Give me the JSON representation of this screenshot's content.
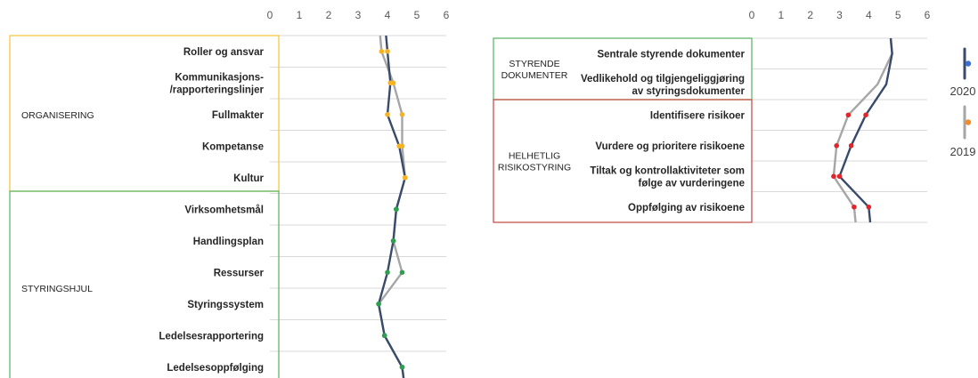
{
  "colors": {
    "series_2020": "#3a4a6b",
    "series_2019": "#a6a6a6",
    "marker_org": "#f5b324",
    "marker_styring": "#2e9e4f",
    "marker_risk": "#e0262a",
    "border_org": "#f5c842",
    "border_green": "#62b86a",
    "border_red": "#c9534a",
    "legend_2020": "#3d6fd1",
    "legend_2019": "#f08a2a",
    "grid": "#d9d9d9"
  },
  "chart_data": [
    {
      "type": "line",
      "orientation": "vertical-profile",
      "xlim": [
        0,
        6
      ],
      "xticks": [
        "0",
        "1",
        "2",
        "3",
        "4",
        "5",
        "6"
      ],
      "groups": [
        {
          "label": "ORGANISERING",
          "rows": 5
        },
        {
          "label": "STYRINGSHJUL",
          "rows": 6
        }
      ],
      "categories": [
        [
          "Roller og ansvar"
        ],
        [
          "Kommunikasjons-",
          "/rapporteringslinjer"
        ],
        [
          "Fullmakter"
        ],
        [
          "Kompetanse"
        ],
        [
          "Kultur"
        ],
        [
          "Virksomhetsmål"
        ],
        [
          "Handlingsplan"
        ],
        [
          "Ressurser"
        ],
        [
          "Styringssystem"
        ],
        [
          "Ledelsesrapportering"
        ],
        [
          "Ledelsesoppfølging"
        ]
      ],
      "series": [
        {
          "name": "2020",
          "values": [
            4.0,
            4.1,
            4.0,
            4.4,
            4.6,
            4.3,
            4.2,
            4.0,
            3.7,
            3.9,
            4.5
          ]
        },
        {
          "name": "2019",
          "values": [
            3.8,
            4.2,
            4.5,
            4.5,
            4.6,
            4.3,
            4.2,
            4.5,
            3.7,
            3.9,
            4.5
          ]
        }
      ]
    },
    {
      "type": "line",
      "orientation": "vertical-profile",
      "xlim": [
        0,
        6
      ],
      "xticks": [
        "0",
        "1",
        "2",
        "3",
        "4",
        "5",
        "6"
      ],
      "groups": [
        {
          "label": [
            "STYRENDE",
            "DOKUMENTER"
          ],
          "rows": 2
        },
        {
          "label": [
            "HELHETLIG",
            "RISIKOSTYRING"
          ],
          "rows": 4
        }
      ],
      "categories": [
        [
          "Sentrale styrende dokumenter"
        ],
        [
          "Vedlikehold og tilgjengeliggjøring",
          "av styringsdokumenter"
        ],
        [
          "Identifisere risikoer"
        ],
        [
          "Vurdere og prioritere risikoene"
        ],
        [
          "Tiltak og kontrollaktiviteter som",
          "følge av vurderingene"
        ],
        [
          "Oppfølging av risikoene"
        ]
      ],
      "series": [
        {
          "name": "2020",
          "values": [
            4.8,
            4.6,
            3.9,
            3.4,
            3.0,
            4.0
          ]
        },
        {
          "name": "2019",
          "values": [
            4.8,
            4.3,
            3.3,
            2.9,
            2.8,
            3.5
          ]
        }
      ]
    }
  ],
  "legend": [
    {
      "label": "2020"
    },
    {
      "label": "2019"
    }
  ]
}
